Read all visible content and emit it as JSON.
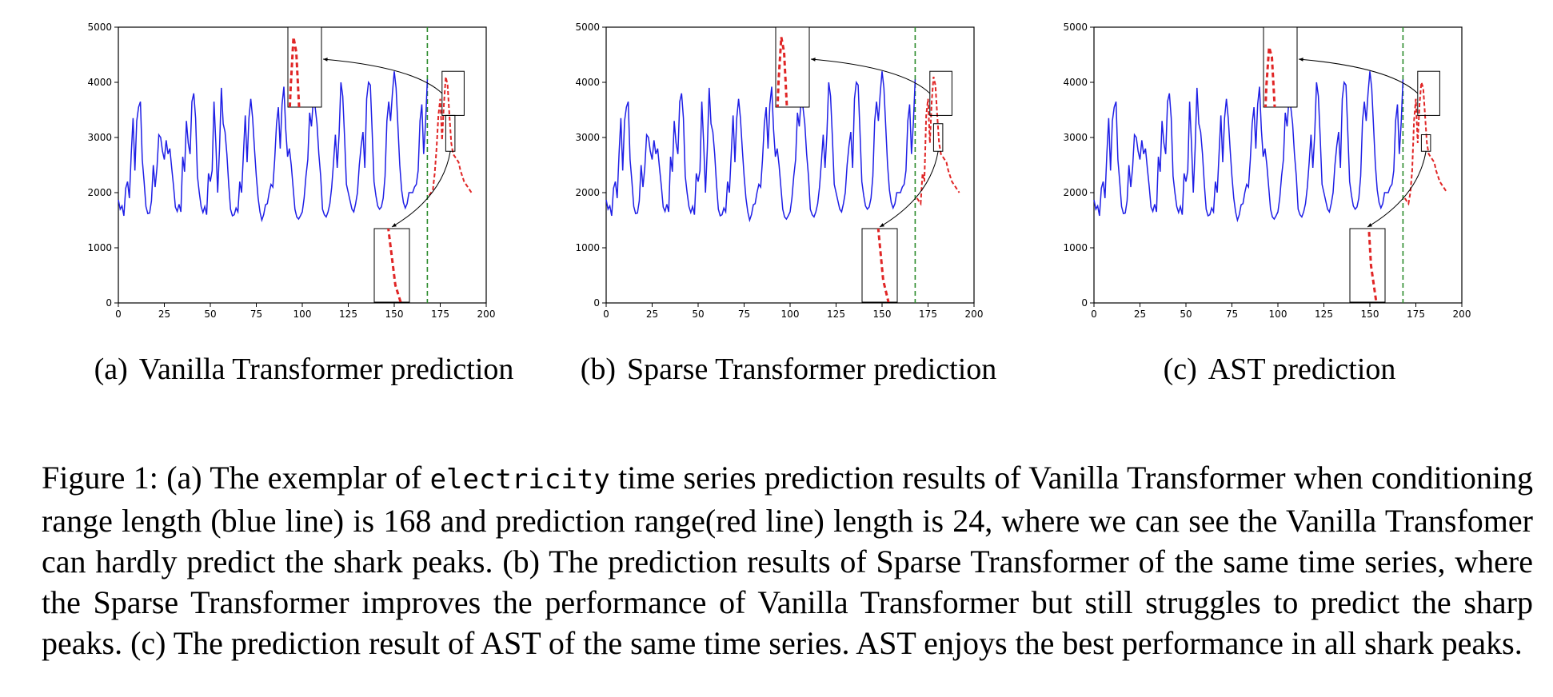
{
  "chart_data": [
    {
      "type": "line",
      "panel_label": "(a)",
      "caption_text": "Vanilla Transformer prediction",
      "xlim": [
        0,
        200
      ],
      "ylim": [
        0,
        5000
      ],
      "xticks": [
        0,
        25,
        50,
        75,
        100,
        125,
        150,
        175,
        200
      ],
      "yticks": [
        0,
        1000,
        2000,
        3000,
        4000,
        5000
      ],
      "conditioning_end": 168,
      "series": [
        {
          "color": "#1f1fe6",
          "x_start": 0,
          "values": [
            1870,
            1700,
            1760,
            1580,
            2080,
            2200,
            1900,
            2700,
            3350,
            2400,
            3300,
            3550,
            3650,
            2600,
            2200,
            1750,
            1620,
            1630,
            1850,
            2500,
            2100,
            2450,
            3050,
            3000,
            2750,
            2600,
            2950,
            2700,
            2800,
            2450,
            2120,
            1740,
            1660,
            1790,
            1650,
            2650,
            2380,
            3300,
            2900,
            2700,
            3650,
            3800,
            3350,
            2300,
            2000,
            1750,
            1640,
            1750,
            1600,
            2350,
            2200,
            2400,
            3650,
            2900,
            2000,
            2800,
            3900,
            3250,
            3100,
            2700,
            2150,
            1700,
            1580,
            1600,
            1720,
            1650,
            2200,
            2000,
            2700,
            3400,
            2550,
            3350,
            3700,
            3350,
            2800,
            2300,
            1900,
            1650,
            1500,
            1600,
            1780,
            1800,
            2000,
            2150,
            2100,
            2600,
            3250,
            3550,
            2800,
            3600,
            3920,
            3150,
            2650,
            2800,
            2500,
            2100,
            1700,
            1560,
            1520,
            1580,
            1650,
            1900,
            2300,
            2600,
            3450,
            3200,
            3700,
            3550,
            3250,
            2700,
            2300,
            1700,
            1600,
            1560,
            1650,
            1800,
            2100,
            2550,
            3050,
            2450,
            3050,
            4000,
            3750,
            3000,
            2150,
            2000,
            1850,
            1700,
            1650,
            1800,
            2000,
            2500,
            2850,
            3100,
            2450,
            3700,
            4000,
            3950,
            3100,
            2200,
            1950,
            1760,
            1700,
            1740,
            1900,
            2300,
            3300,
            3650,
            3300,
            3800,
            4200,
            3900,
            3200,
            2500,
            2050,
            1820,
            1720,
            1800,
            2000,
            2000,
            2000,
            2100,
            2150,
            2400,
            3300,
            3600,
            2700,
            3250,
            4050
          ]
        },
        {
          "color": "#e02525",
          "dashed": true,
          "x_start": 169,
          "values": [
            1950,
            2000,
            2050,
            2350,
            2800,
            3400,
            3700,
            2950,
            3600,
            4100,
            3950,
            3400,
            2900,
            2700,
            2650,
            2600,
            2550,
            2400,
            2300,
            2200,
            2150,
            2100,
            2050,
            2000
          ]
        }
      ],
      "inset_upper": {
        "x_range": [
          176,
          188
        ],
        "y_range": [
          3400,
          4200
        ]
      },
      "inset_lower": {
        "x_range": [
          178,
          183
        ],
        "y_range": [
          2750,
          3400
        ]
      }
    },
    {
      "type": "line",
      "panel_label": "(b)",
      "caption_text": "Sparse Transformer prediction",
      "xlim": [
        0,
        200
      ],
      "ylim": [
        0,
        5000
      ],
      "xticks": [
        0,
        25,
        50,
        75,
        100,
        125,
        150,
        175,
        200
      ],
      "yticks": [
        0,
        1000,
        2000,
        3000,
        4000,
        5000
      ],
      "conditioning_end": 168,
      "series": [
        {
          "color": "#1f1fe6",
          "x_start": 0,
          "values": [
            1870,
            1700,
            1760,
            1580,
            2080,
            2200,
            1900,
            2700,
            3350,
            2400,
            3300,
            3550,
            3650,
            2600,
            2200,
            1750,
            1620,
            1630,
            1850,
            2500,
            2100,
            2450,
            3050,
            3000,
            2750,
            2600,
            2950,
            2700,
            2800,
            2450,
            2120,
            1740,
            1660,
            1790,
            1650,
            2650,
            2380,
            3300,
            2900,
            2700,
            3650,
            3800,
            3350,
            2300,
            2000,
            1750,
            1640,
            1750,
            1600,
            2350,
            2200,
            2400,
            3650,
            2900,
            2000,
            2800,
            3900,
            3250,
            3100,
            2700,
            2150,
            1700,
            1580,
            1600,
            1720,
            1650,
            2200,
            2000,
            2700,
            3400,
            2550,
            3350,
            3700,
            3350,
            2800,
            2300,
            1900,
            1650,
            1500,
            1600,
            1780,
            1800,
            2000,
            2150,
            2100,
            2600,
            3250,
            3550,
            2800,
            3600,
            3920,
            3150,
            2650,
            2800,
            2500,
            2100,
            1700,
            1560,
            1520,
            1580,
            1650,
            1900,
            2300,
            2600,
            3450,
            3200,
            3700,
            3550,
            3250,
            2700,
            2300,
            1700,
            1600,
            1560,
            1650,
            1800,
            2100,
            2550,
            3050,
            2450,
            3050,
            4000,
            3750,
            3000,
            2150,
            2000,
            1850,
            1700,
            1650,
            1800,
            2000,
            2500,
            2850,
            3100,
            2450,
            3700,
            4000,
            3950,
            3100,
            2200,
            1950,
            1760,
            1700,
            1740,
            1900,
            2300,
            3300,
            3650,
            3300,
            3800,
            4200,
            3900,
            3200,
            2500,
            2050,
            1820,
            1720,
            1800,
            2000,
            2000,
            2000,
            2100,
            2150,
            2400,
            3300,
            3600,
            2700,
            3250,
            4050
          ]
        },
        {
          "color": "#e02525",
          "dashed": true,
          "x_start": 169,
          "values": [
            1900,
            1850,
            1800,
            2350,
            2200,
            3400,
            3700,
            2900,
            3650,
            4100,
            3950,
            3400,
            2900,
            2700,
            2650,
            2600,
            2550,
            2400,
            2300,
            2200,
            2150,
            2100,
            2050,
            2000
          ]
        }
      ],
      "inset_upper": {
        "x_range": [
          176,
          188
        ],
        "y_range": [
          3400,
          4200
        ]
      },
      "inset_lower": {
        "x_range": [
          178,
          183
        ],
        "y_range": [
          2750,
          3250
        ]
      }
    },
    {
      "type": "line",
      "panel_label": "(c)",
      "caption_text": "AST prediction",
      "xlim": [
        0,
        200
      ],
      "ylim": [
        0,
        5000
      ],
      "xticks": [
        0,
        25,
        50,
        75,
        100,
        125,
        150,
        175,
        200
      ],
      "yticks": [
        0,
        1000,
        2000,
        3000,
        4000,
        5000
      ],
      "conditioning_end": 168,
      "series": [
        {
          "color": "#1f1fe6",
          "x_start": 0,
          "values": [
            1870,
            1700,
            1760,
            1580,
            2080,
            2200,
            1900,
            2700,
            3350,
            2400,
            3300,
            3550,
            3650,
            2600,
            2200,
            1750,
            1620,
            1630,
            1850,
            2500,
            2100,
            2450,
            3050,
            3000,
            2750,
            2600,
            2950,
            2700,
            2800,
            2450,
            2120,
            1740,
            1660,
            1790,
            1650,
            2650,
            2380,
            3300,
            2900,
            2700,
            3650,
            3800,
            3350,
            2300,
            2000,
            1750,
            1640,
            1750,
            1600,
            2350,
            2200,
            2400,
            3650,
            2900,
            2000,
            2800,
            3900,
            3250,
            3100,
            2700,
            2150,
            1700,
            1580,
            1600,
            1720,
            1650,
            2200,
            2000,
            2700,
            3400,
            2550,
            3350,
            3700,
            3350,
            2800,
            2300,
            1900,
            1650,
            1500,
            1600,
            1780,
            1800,
            2000,
            2150,
            2100,
            2600,
            3250,
            3550,
            2800,
            3600,
            3920,
            3150,
            2650,
            2800,
            2500,
            2100,
            1700,
            1560,
            1520,
            1580,
            1650,
            1900,
            2300,
            2600,
            3450,
            3200,
            3700,
            3550,
            3250,
            2700,
            2300,
            1700,
            1600,
            1560,
            1650,
            1800,
            2100,
            2550,
            3050,
            2450,
            3050,
            4000,
            3750,
            3000,
            2150,
            2000,
            1850,
            1700,
            1650,
            1800,
            2000,
            2500,
            2850,
            3100,
            2450,
            3700,
            4000,
            3950,
            3100,
            2200,
            1950,
            1760,
            1700,
            1740,
            1900,
            2300,
            3300,
            3650,
            3300,
            3800,
            4200,
            3900,
            3200,
            2500,
            2050,
            1820,
            1720,
            1800,
            2000,
            2000,
            2000,
            2100,
            2150,
            2400,
            3300,
            3600,
            2700,
            3250,
            4050
          ]
        },
        {
          "color": "#e02525",
          "dashed": true,
          "x_start": 169,
          "values": [
            1900,
            1850,
            1800,
            2000,
            2400,
            3300,
            3700,
            2900,
            3600,
            4000,
            3900,
            3400,
            2900,
            2700,
            2650,
            2600,
            2550,
            2400,
            2300,
            2200,
            2150,
            2100,
            2050,
            2000
          ]
        }
      ],
      "inset_upper": {
        "x_range": [
          176,
          188
        ],
        "y_range": [
          3400,
          4200
        ]
      },
      "inset_lower": {
        "x_range": [
          178,
          183
        ],
        "y_range": [
          2750,
          3050
        ]
      }
    }
  ],
  "caption": {
    "figure_label": "Figure 1:",
    "part_a": "(a) The exemplar of",
    "dataset_name": "electricity",
    "body": "time series prediction results of Vanilla Transformer when conditioning range length (blue line) is 168 and prediction range(red line) length is 24, where we can see the Vanilla Transfomer can hardly predict the shark peaks. (b) The prediction results of Sparse Transformer of the same time series, where the Sparse Transformer improves the performance of Vanilla Transformer but still struggles to predict the sharp peaks. (c) The prediction result of AST of the same time series. AST enjoys the best performance in all shark peaks."
  }
}
